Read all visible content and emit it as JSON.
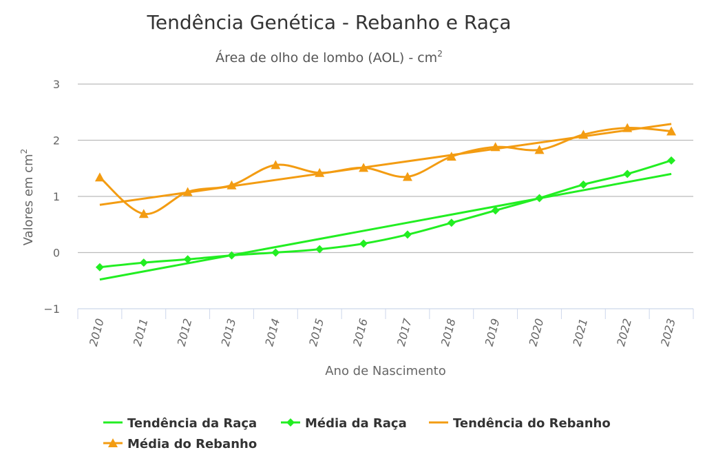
{
  "chart_data": {
    "type": "line",
    "title": "Tendência Genética - Rebanho e Raça",
    "subtitle": "Área de olho de lombo (AOL) - cm",
    "subtitle_sup": "2",
    "xlabel": "Ano de Nascimento",
    "ylabel": "Valores em cm",
    "ylabel_sup": "2",
    "ylim": [
      -1,
      3
    ],
    "yticks": [
      "3",
      "2",
      "1",
      "0",
      "−1"
    ],
    "ytick_values": [
      3,
      2,
      1,
      0,
      -1
    ],
    "categories": [
      "2010",
      "2011",
      "2012",
      "2013",
      "2014",
      "2015",
      "2016",
      "2017",
      "2018",
      "2019",
      "2020",
      "2021",
      "2022",
      "2023"
    ],
    "grid": true,
    "legend_position": "bottom-left",
    "series": [
      {
        "name": "Tendência da Raça",
        "color": "#22ee22",
        "kind": "trend",
        "values": [
          -0.48,
          -0.335,
          -0.19,
          -0.045,
          0.1,
          0.245,
          0.39,
          0.535,
          0.68,
          0.825,
          0.97,
          1.115,
          1.26,
          1.4
        ]
      },
      {
        "name": "Média da Raça",
        "color": "#22ee22",
        "kind": "marker-diamond",
        "values": [
          -0.26,
          -0.18,
          -0.12,
          -0.05,
          0.0,
          0.06,
          0.16,
          0.32,
          0.53,
          0.75,
          0.97,
          1.21,
          1.4,
          1.64
        ]
      },
      {
        "name": "Tendência do Rebanho",
        "color": "#f39c12",
        "kind": "trend",
        "values": [
          0.85,
          0.96,
          1.07,
          1.18,
          1.29,
          1.4,
          1.51,
          1.63,
          1.74,
          1.85,
          1.96,
          2.07,
          2.18,
          2.29
        ]
      },
      {
        "name": "Média do Rebanho",
        "color": "#f39c12",
        "kind": "marker-triangle",
        "values": [
          1.34,
          0.69,
          1.08,
          1.2,
          1.56,
          1.42,
          1.51,
          1.35,
          1.71,
          1.88,
          1.83,
          2.1,
          2.22,
          2.16
        ]
      }
    ]
  }
}
